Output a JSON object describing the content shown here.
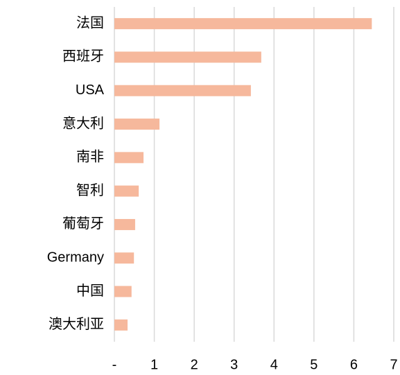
{
  "chart_data": {
    "type": "barh",
    "categories": [
      "法国",
      "西班牙",
      "USA",
      "意大利",
      "南非",
      "智利",
      "葡萄牙",
      "Germany",
      "中国",
      "澳大利亚"
    ],
    "values": [
      6.45,
      3.68,
      3.42,
      1.13,
      0.73,
      0.61,
      0.52,
      0.49,
      0.43,
      0.33
    ],
    "color": "#f6b89c",
    "xlim": [
      0,
      7
    ],
    "xticks": [
      {
        "value": 0,
        "label": "-"
      },
      1,
      2,
      3,
      4,
      5,
      6,
      7
    ],
    "grid": true
  }
}
